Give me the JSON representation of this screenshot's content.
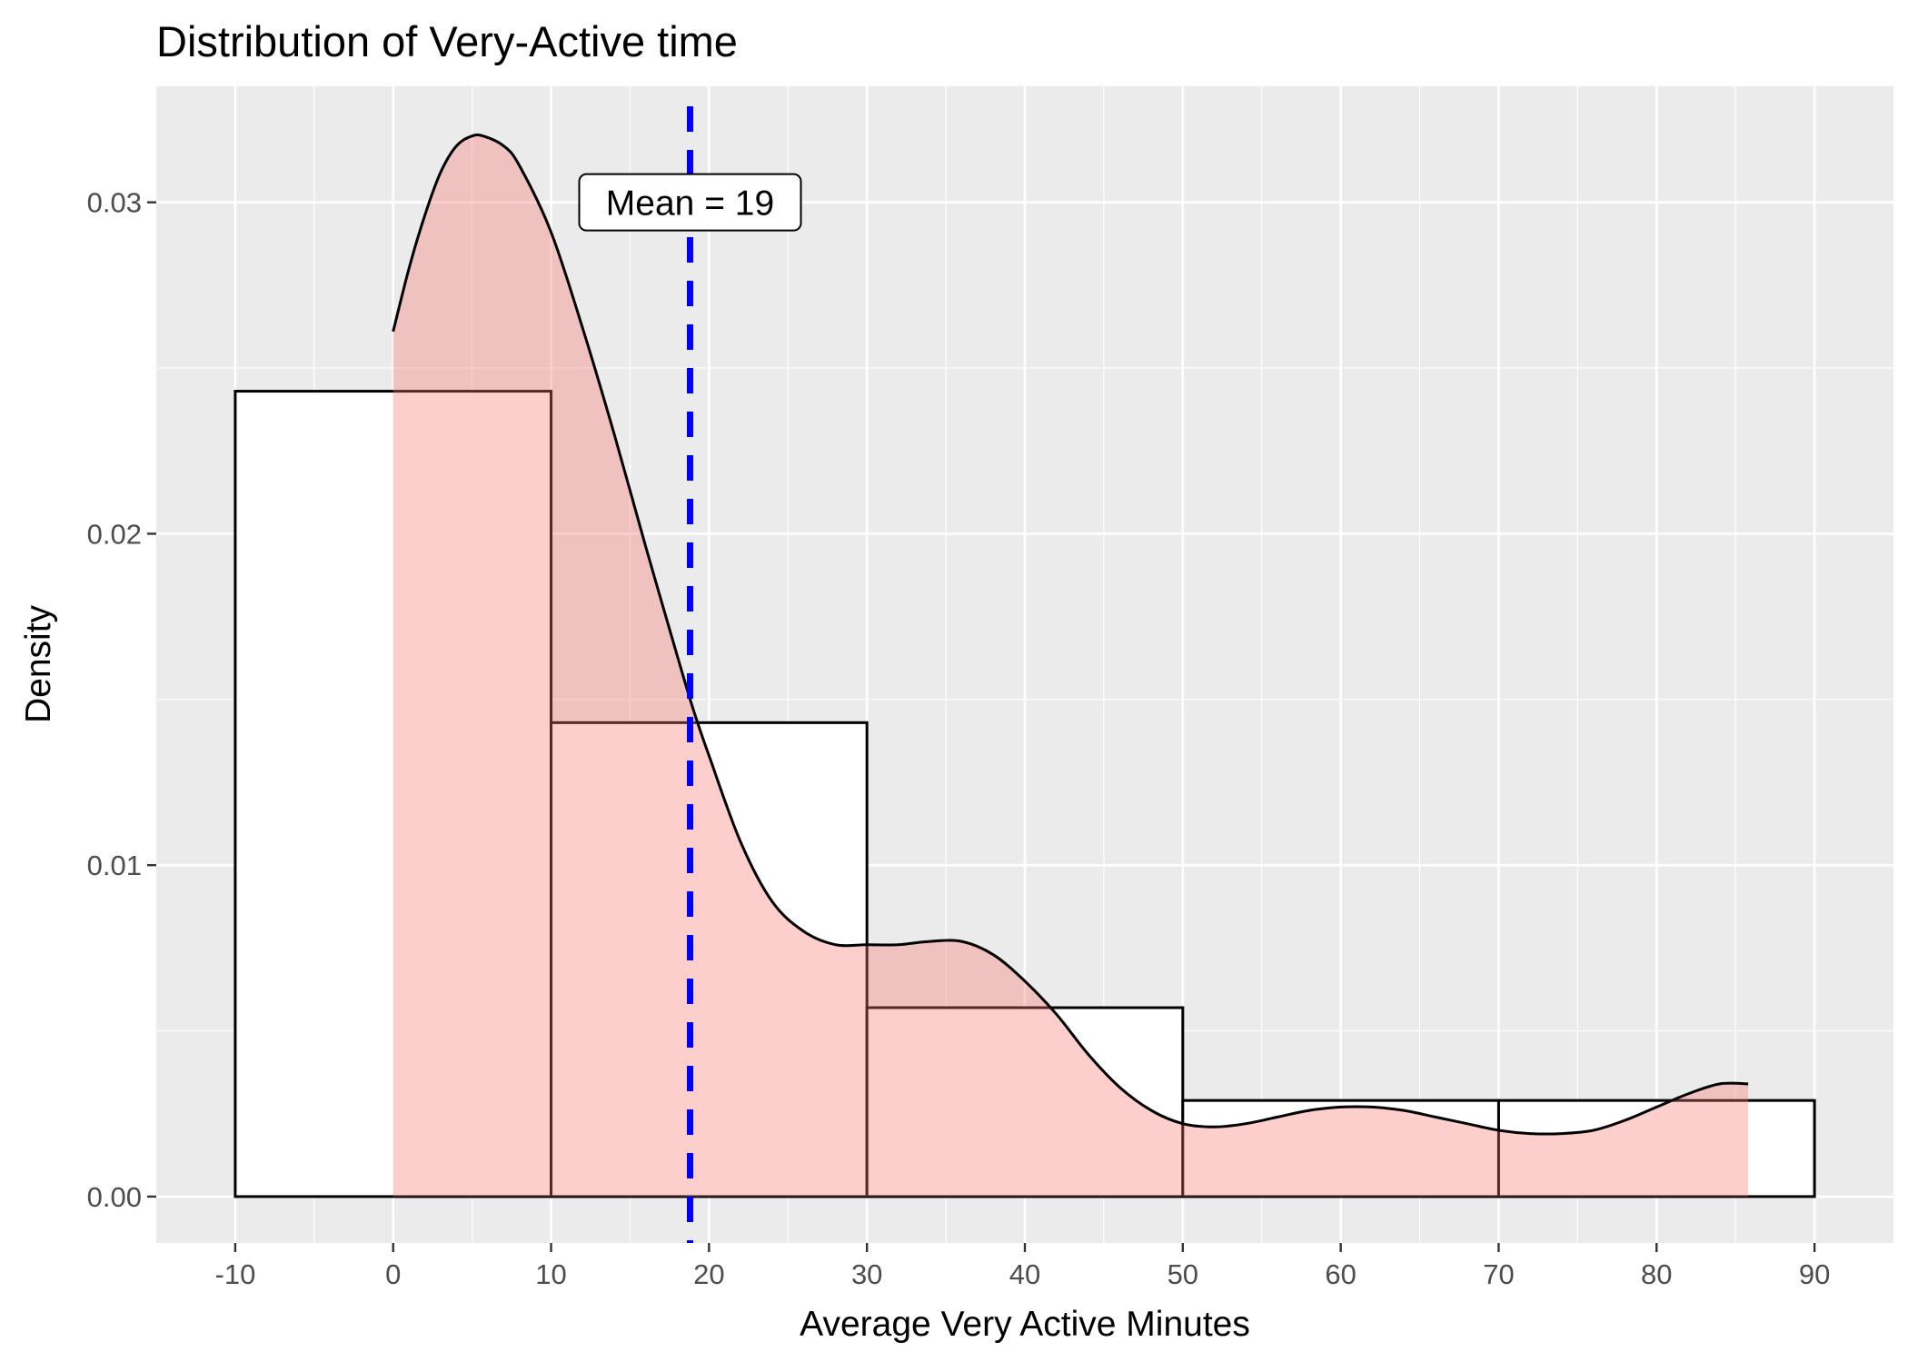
{
  "chart_data": {
    "type": "histogram-density",
    "title": "Distribution of Very-Active time",
    "xlabel": "Average Very Active Minutes",
    "ylabel": "Density",
    "xlim": [
      -15,
      95
    ],
    "ylim": [
      -0.0014,
      0.0335
    ],
    "x_ticks": [
      -10,
      0,
      10,
      20,
      30,
      40,
      50,
      60,
      70,
      80,
      90
    ],
    "x_tick_labels": [
      "-10",
      "0",
      "10",
      "20",
      "30",
      "40",
      "50",
      "60",
      "70",
      "80",
      "90"
    ],
    "y_ticks": [
      0.0,
      0.01,
      0.02,
      0.03
    ],
    "y_tick_labels": [
      "0.00",
      "0.01",
      "0.02",
      "0.03"
    ],
    "grid": true,
    "histogram": {
      "bins": [
        {
          "x0": -10,
          "x1": 10,
          "density": 0.0243
        },
        {
          "x0": 10,
          "x1": 30,
          "density": 0.0143
        },
        {
          "x0": 30,
          "x1": 50,
          "density": 0.0057
        },
        {
          "x0": 50,
          "x1": 70,
          "density": 0.0029
        },
        {
          "x0": 70,
          "x1": 90,
          "density": 0.0029
        }
      ]
    },
    "density": {
      "x": [
        0,
        1,
        2,
        3,
        4,
        5,
        5.7,
        7,
        8,
        10,
        12,
        14,
        16,
        18,
        19,
        20,
        22,
        24,
        26,
        28,
        30,
        32,
        34,
        36,
        38,
        40,
        42,
        44,
        46,
        48,
        50,
        52,
        54,
        56,
        58,
        60,
        62,
        64,
        66,
        68,
        70,
        72,
        74,
        76,
        78,
        80,
        82,
        84,
        85.8
      ],
      "y": [
        0.0261,
        0.028,
        0.0296,
        0.0309,
        0.0317,
        0.032,
        0.032,
        0.0317,
        0.0311,
        0.0291,
        0.0262,
        0.023,
        0.0196,
        0.0163,
        0.0147,
        0.0133,
        0.0107,
        0.0089,
        0.008,
        0.0076,
        0.0076,
        0.0076,
        0.0077,
        0.0077,
        0.0073,
        0.0065,
        0.0055,
        0.0043,
        0.0033,
        0.0026,
        0.0022,
        0.0021,
        0.0022,
        0.0024,
        0.0026,
        0.0027,
        0.0027,
        0.0026,
        0.0024,
        0.0022,
        0.002,
        0.0019,
        0.0019,
        0.002,
        0.0023,
        0.0027,
        0.0031,
        0.0034,
        0.0034
      ]
    },
    "mean_line": {
      "x": 18.8,
      "label": "Mean = 19",
      "label_y": 0.03
    },
    "colors": {
      "panel_background": "#ebebeb",
      "grid": "#ffffff",
      "density_fill": "#f8766d",
      "density_fill_opacity": 0.35,
      "histogram_fill": "#ffffff",
      "outline": "#000000",
      "mean_line": "#0000ff"
    }
  }
}
